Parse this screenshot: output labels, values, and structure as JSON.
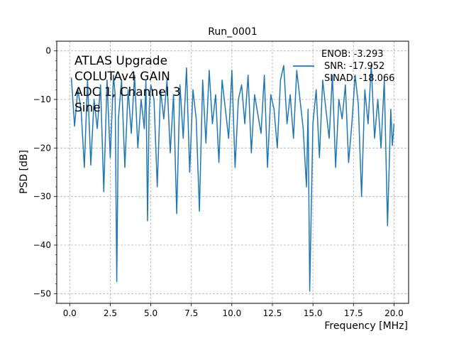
{
  "chart_data": {
    "type": "line",
    "title": "Run_0001",
    "xlabel": "Frequency [MHz]",
    "ylabel": "PSD [dB]",
    "xlim": [
      -0.8,
      20.9
    ],
    "ylim": [
      -52,
      2
    ],
    "xticks": [
      0,
      2.5,
      5,
      7.5,
      10,
      12.5,
      15,
      17.5,
      20
    ],
    "xtick_labels": [
      "0.0",
      "2.5",
      "5.0",
      "7.5",
      "10.0",
      "12.5",
      "15.0",
      "17.5",
      "20.0"
    ],
    "yticks": [
      0,
      -10,
      -20,
      -30,
      -40,
      -50
    ],
    "ytick_labels": [
      "0",
      "−10",
      "−20",
      "−30",
      "−40",
      "−50"
    ],
    "grid": true,
    "grid_style": "dashed",
    "annotation_lines": [
      "ATLAS Upgrade",
      "COLUTAv4 GAIN",
      "ADC 1, Channel 3",
      "Sine"
    ],
    "legend": {
      "placement": "upper-right",
      "lines": [
        "ENOB: -3.293",
        "SNR: -17.952",
        "SINAD: -18.066"
      ]
    },
    "series": [
      {
        "name": "PSD",
        "color": "#1f77b4",
        "x": [
          0.1,
          0.3,
          0.5,
          0.7,
          0.9,
          1.1,
          1.3,
          1.5,
          1.7,
          1.9,
          2.1,
          2.3,
          2.5,
          2.7,
          2.8,
          2.9,
          3.0,
          3.2,
          3.4,
          3.6,
          3.8,
          4.0,
          4.2,
          4.4,
          4.6,
          4.7,
          4.8,
          4.9,
          5.0,
          5.2,
          5.4,
          5.6,
          5.8,
          6.0,
          6.2,
          6.4,
          6.6,
          6.8,
          7.0,
          7.2,
          7.4,
          7.6,
          7.8,
          8.0,
          8.2,
          8.4,
          8.6,
          8.8,
          9.0,
          9.2,
          9.4,
          9.6,
          9.8,
          10.0,
          10.2,
          10.4,
          10.6,
          10.8,
          11.0,
          11.2,
          11.4,
          11.6,
          11.8,
          12.0,
          12.2,
          12.4,
          12.6,
          12.8,
          13.0,
          13.2,
          13.4,
          13.6,
          13.8,
          14.0,
          14.2,
          14.4,
          14.6,
          14.7,
          14.8,
          15.0,
          15.2,
          15.4,
          15.6,
          15.8,
          16.0,
          16.2,
          16.4,
          16.6,
          16.8,
          17.0,
          17.2,
          17.4,
          17.6,
          17.8,
          18.0,
          18.2,
          18.4,
          18.6,
          18.8,
          19.0,
          19.2,
          19.4,
          19.6,
          19.8,
          19.9,
          20.0
        ],
        "values": [
          -5.5,
          -15.5,
          -8,
          -12,
          -24,
          -6,
          -23.5,
          -10,
          -16,
          -7,
          -29,
          -6,
          -22,
          -5,
          -9,
          -47.5,
          -14,
          -6,
          -24,
          -8,
          -17,
          -5,
          -20,
          -10,
          -16,
          -6,
          -35,
          -12,
          -7,
          -10,
          -28,
          -8,
          -14,
          -6,
          -21,
          -9,
          -33.5,
          -7,
          -18,
          -3.5,
          -25,
          -8,
          -14,
          -33,
          -6,
          -19,
          -4,
          -15,
          -9,
          -23,
          -6,
          -12,
          -18,
          -4,
          -24,
          -10,
          -7,
          -15,
          -5,
          -21,
          -9,
          -13,
          -17,
          -5,
          -24,
          -9,
          -12,
          -20,
          -6,
          -3,
          -15,
          -9,
          -18,
          -4,
          -10,
          -16,
          -28,
          -12,
          -49.5,
          -15,
          -8,
          -22,
          -6,
          -12,
          -18,
          -5,
          -24,
          -10,
          -14,
          -7,
          -23,
          -15,
          -5,
          -11,
          -30,
          -8,
          -15,
          -3,
          -18,
          -10,
          -20,
          -6,
          -36,
          -12,
          -19.5,
          -15
        ]
      }
    ]
  }
}
